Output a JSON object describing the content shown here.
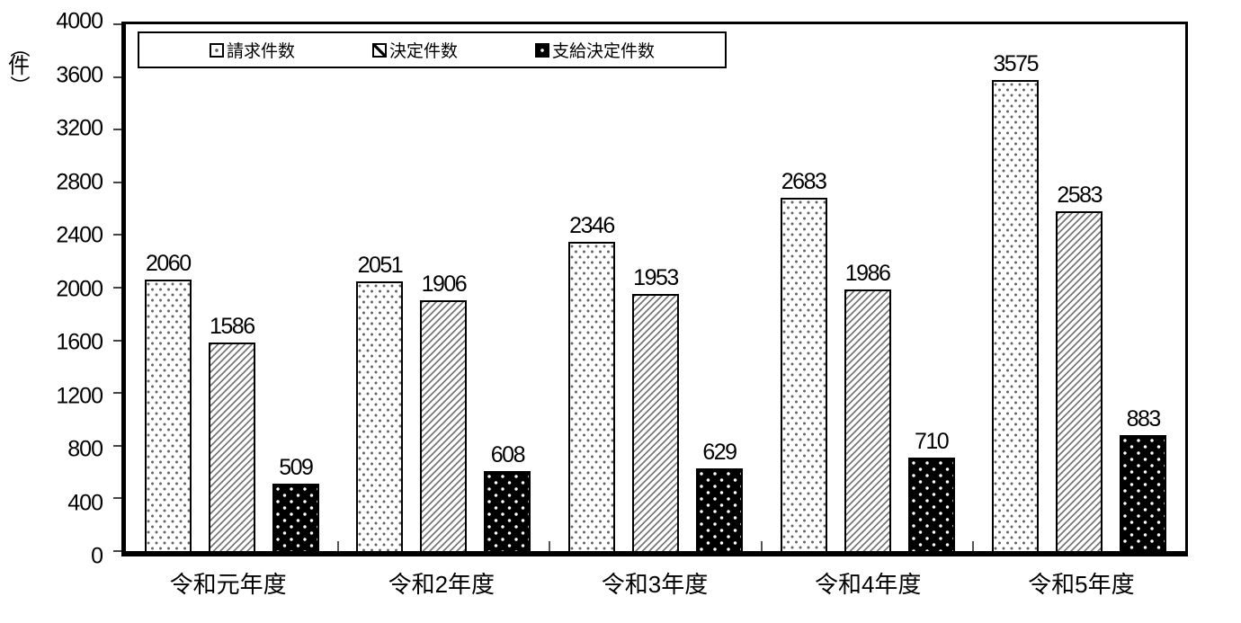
{
  "chart_data": {
    "type": "bar",
    "title": "",
    "unit_label": "（件）",
    "categories": [
      "令和元年度",
      "令和2年度",
      "令和3年度",
      "令和4年度",
      "令和5年度"
    ],
    "series": [
      {
        "name": "請求件数",
        "pattern": "white-dots",
        "values": [
          2060,
          2051,
          2346,
          2683,
          3575
        ]
      },
      {
        "name": "決定件数",
        "pattern": "diagonal-hatch",
        "values": [
          1586,
          1906,
          1953,
          1986,
          2583
        ]
      },
      {
        "name": "支給決定件数",
        "pattern": "black-white-dots",
        "values": [
          509,
          608,
          629,
          710,
          883
        ]
      }
    ],
    "ylim": [
      0,
      4000
    ],
    "ytick_step": 400,
    "grid": false,
    "value_labels": true,
    "legend_position": "top-inside-left",
    "colors": {
      "foreground": "#000000",
      "hatch": "#777777",
      "dot": "#666666",
      "background": "#ffffff"
    }
  }
}
